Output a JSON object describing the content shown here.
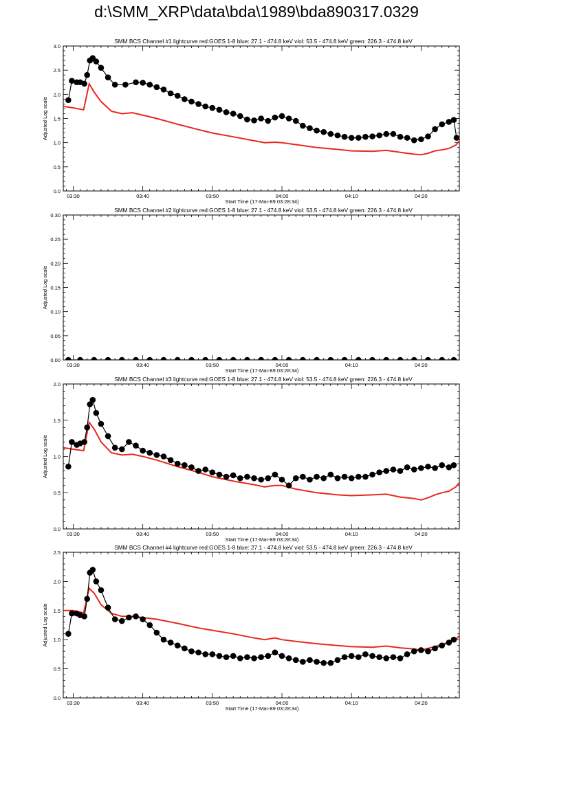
{
  "page": {
    "title": "d:\\SMM_XRP\\data\\bda\\1989\\bda890317.0329"
  },
  "colors": {
    "goes": "#e8281e",
    "channel": "#000000",
    "axis": "#000000"
  },
  "chart_data": [
    {
      "type": "line",
      "title": "SMM BCS Channel #1 lightcurve  red:GOES 1-8  blue: 27.1 - 474.8 keV  viol: 53.5 - 474.8 keV  green: 226.3 - 474.8 keV",
      "xlabel": "Start Time (17-Mar-89 03:28:34)",
      "ylabel": "Adjusted Log scale",
      "xticks": [
        "03:30",
        "03:40",
        "03:50",
        "04:00",
        "04:10",
        "04:20"
      ],
      "xtick_minutes": [
        30,
        40,
        50,
        60,
        70,
        80
      ],
      "xlim_minutes": [
        28.57,
        85.5
      ],
      "ylim": [
        0,
        3.0
      ],
      "yticks": [
        "0.0",
        "0.5",
        "1.0",
        "1.5",
        "2.0",
        "2.5",
        "3.0"
      ],
      "series": [
        {
          "color": "#e8281e",
          "x": [
            28.6,
            30,
            31.5,
            32.3,
            33,
            34,
            35.5,
            37,
            38.5,
            40,
            42,
            45,
            48,
            50,
            53,
            56,
            57.5,
            59,
            60,
            62,
            65,
            68,
            70,
            73,
            75,
            77,
            79,
            80,
            81,
            82,
            83,
            84,
            85,
            85.5
          ],
          "values": [
            1.75,
            1.72,
            1.68,
            2.22,
            2.05,
            1.85,
            1.65,
            1.6,
            1.62,
            1.57,
            1.5,
            1.38,
            1.27,
            1.2,
            1.12,
            1.04,
            1.0,
            1.01,
            1.0,
            0.96,
            0.9,
            0.86,
            0.83,
            0.82,
            0.84,
            0.8,
            0.76,
            0.75,
            0.78,
            0.83,
            0.85,
            0.88,
            0.95,
            1.04
          ]
        },
        {
          "color": "#000000",
          "x": [
            29.3,
            29.8,
            30.5,
            31,
            31.6,
            32,
            32.4,
            32.8,
            33.3,
            34,
            35,
            36,
            37.5,
            39,
            40,
            41,
            42,
            43,
            44,
            45,
            46,
            47,
            48,
            49,
            50,
            51,
            52,
            53,
            54,
            55,
            56,
            57,
            58,
            59,
            60,
            61,
            62,
            63,
            64,
            65,
            66,
            67,
            68,
            69,
            70,
            71,
            72,
            73,
            74,
            75,
            76,
            77,
            78,
            79,
            80,
            81,
            82,
            83,
            84,
            84.7,
            85.1
          ],
          "values": [
            1.88,
            2.28,
            2.25,
            2.25,
            2.22,
            2.4,
            2.7,
            2.75,
            2.68,
            2.55,
            2.35,
            2.2,
            2.2,
            2.25,
            2.24,
            2.2,
            2.15,
            2.1,
            2.02,
            1.97,
            1.9,
            1.85,
            1.8,
            1.75,
            1.72,
            1.68,
            1.63,
            1.6,
            1.55,
            1.48,
            1.46,
            1.5,
            1.45,
            1.52,
            1.55,
            1.5,
            1.45,
            1.35,
            1.3,
            1.25,
            1.22,
            1.18,
            1.15,
            1.12,
            1.1,
            1.1,
            1.12,
            1.13,
            1.15,
            1.18,
            1.18,
            1.12,
            1.1,
            1.05,
            1.07,
            1.13,
            1.28,
            1.38,
            1.43,
            1.47,
            1.1
          ]
        }
      ]
    },
    {
      "type": "line",
      "title": "SMM BCS Channel #2 lightcurve  red:GOES 1-8  blue: 27.1 - 474.8 keV  viol: 53.5 - 474.8 keV  green: 226.3 - 474.8 keV",
      "xlabel": "Start Time (17-Mar-89 03:28:34)",
      "ylabel": "Adjusted Log scale",
      "xticks": [
        "03:30",
        "03:40",
        "03:50",
        "04:00",
        "04:10",
        "04:20"
      ],
      "xtick_minutes": [
        30,
        40,
        50,
        60,
        70,
        80
      ],
      "xlim_minutes": [
        28.57,
        85.5
      ],
      "ylim": [
        0,
        0.3
      ],
      "yticks": [
        "0.00",
        "0.05",
        "0.10",
        "0.15",
        "0.20",
        "0.25",
        "0.30"
      ],
      "series": [
        {
          "color": "#000000",
          "x": [
            29.3,
            31,
            33,
            35,
            37,
            39,
            41,
            43,
            45,
            47,
            49,
            51,
            53,
            55,
            57,
            59,
            61,
            63,
            65,
            67,
            69,
            71,
            73,
            75,
            77,
            79,
            81,
            83,
            84.7
          ],
          "values": [
            0,
            0,
            0,
            0,
            0,
            0,
            0,
            0,
            0,
            0,
            0,
            0,
            0,
            0,
            0,
            0,
            0,
            0,
            0,
            0,
            0,
            0,
            0,
            0,
            0,
            0,
            0,
            0,
            0
          ]
        }
      ]
    },
    {
      "type": "line",
      "title": "SMM BCS Channel #3 lightcurve  red:GOES 1-8  blue: 27.1 - 474.8 keV  viol: 53.5 - 474.8 keV  green: 226.3 - 474.8 keV",
      "xlabel": "Start Time (17-Mar-89 03:28:34)",
      "ylabel": "Adjusted Log scale",
      "xticks": [
        "03:30",
        "03:40",
        "03:50",
        "04:00",
        "04:10",
        "04:20"
      ],
      "xtick_minutes": [
        30,
        40,
        50,
        60,
        70,
        80
      ],
      "xlim_minutes": [
        28.57,
        85.5
      ],
      "ylim": [
        0,
        2.0
      ],
      "yticks": [
        "0.0",
        "0.5",
        "1.0",
        "1.5",
        "2.0"
      ],
      "series": [
        {
          "color": "#e8281e",
          "x": [
            28.6,
            30,
            31.5,
            32.3,
            33,
            34,
            35.5,
            37,
            38.5,
            40,
            42,
            45,
            48,
            50,
            53,
            56,
            57.5,
            59,
            60,
            62,
            65,
            68,
            70,
            73,
            75,
            77,
            79,
            80,
            81,
            82,
            83,
            84,
            85,
            85.5
          ],
          "values": [
            1.12,
            1.1,
            1.08,
            1.47,
            1.38,
            1.2,
            1.05,
            1.02,
            1.03,
            1.0,
            0.95,
            0.86,
            0.78,
            0.72,
            0.66,
            0.61,
            0.58,
            0.6,
            0.6,
            0.55,
            0.5,
            0.47,
            0.46,
            0.47,
            0.48,
            0.44,
            0.42,
            0.4,
            0.43,
            0.47,
            0.5,
            0.52,
            0.58,
            0.64
          ]
        },
        {
          "color": "#000000",
          "x": [
            29.3,
            29.8,
            30.5,
            31,
            31.6,
            32,
            32.4,
            32.8,
            33.3,
            34,
            35,
            36,
            37,
            38,
            39,
            40,
            41,
            42,
            43,
            44,
            45,
            46,
            47,
            48,
            49,
            50,
            51,
            52,
            53,
            54,
            55,
            56,
            57,
            58,
            59,
            60,
            61,
            62,
            63,
            64,
            65,
            66,
            67,
            68,
            69,
            70,
            71,
            72,
            73,
            74,
            75,
            76,
            77,
            78,
            79,
            80,
            81,
            82,
            83,
            84,
            84.7
          ],
          "values": [
            0.86,
            1.2,
            1.16,
            1.18,
            1.2,
            1.4,
            1.72,
            1.78,
            1.6,
            1.45,
            1.28,
            1.12,
            1.1,
            1.2,
            1.15,
            1.08,
            1.05,
            1.02,
            1.0,
            0.95,
            0.9,
            0.88,
            0.85,
            0.8,
            0.82,
            0.78,
            0.75,
            0.72,
            0.74,
            0.7,
            0.72,
            0.7,
            0.68,
            0.7,
            0.75,
            0.68,
            0.6,
            0.7,
            0.72,
            0.68,
            0.72,
            0.7,
            0.75,
            0.7,
            0.72,
            0.7,
            0.72,
            0.72,
            0.75,
            0.78,
            0.8,
            0.82,
            0.8,
            0.85,
            0.82,
            0.84,
            0.86,
            0.84,
            0.88,
            0.85,
            0.88
          ]
        }
      ]
    },
    {
      "type": "line",
      "title": "SMM BCS Channel #4 lightcurve  red:GOES 1-8  blue: 27.1 - 474.8 keV  viol: 53.5 - 474.8 keV  green: 226.3 - 474.8 keV",
      "xlabel": "Start Time (17-Mar-89 03:28:34)",
      "ylabel": "Adjusted Log scale",
      "xticks": [
        "03:30",
        "03:40",
        "03:50",
        "04:00",
        "04:10",
        "04:20"
      ],
      "xtick_minutes": [
        30,
        40,
        50,
        60,
        70,
        80
      ],
      "xlim_minutes": [
        28.57,
        85.5
      ],
      "ylim": [
        0,
        2.5
      ],
      "yticks": [
        "0.0",
        "0.5",
        "1.0",
        "1.5",
        "2.0",
        "2.5"
      ],
      "series": [
        {
          "color": "#e8281e",
          "x": [
            28.6,
            30,
            31.5,
            32.3,
            33,
            34,
            35.5,
            37,
            38.5,
            40,
            42,
            45,
            48,
            50,
            53,
            56,
            57.5,
            59,
            60,
            62,
            65,
            68,
            70,
            73,
            75,
            77,
            79,
            80,
            81,
            82,
            83,
            84,
            85,
            85.5
          ],
          "values": [
            1.5,
            1.5,
            1.46,
            1.88,
            1.8,
            1.6,
            1.45,
            1.4,
            1.4,
            1.38,
            1.35,
            1.28,
            1.2,
            1.16,
            1.1,
            1.03,
            1.0,
            1.03,
            1.0,
            0.97,
            0.93,
            0.9,
            0.88,
            0.87,
            0.89,
            0.86,
            0.84,
            0.82,
            0.85,
            0.88,
            0.92,
            0.95,
            1.0,
            1.07
          ]
        },
        {
          "color": "#000000",
          "x": [
            29.3,
            29.8,
            30.5,
            31,
            31.6,
            32,
            32.4,
            32.8,
            33.3,
            34,
            35,
            36,
            37,
            38,
            39,
            40,
            41,
            42,
            43,
            44,
            45,
            46,
            47,
            48,
            49,
            50,
            51,
            52,
            53,
            54,
            55,
            56,
            57,
            58,
            59,
            60,
            61,
            62,
            63,
            64,
            65,
            66,
            67,
            68,
            69,
            70,
            71,
            72,
            73,
            74,
            75,
            76,
            77,
            78,
            79,
            80,
            81,
            82,
            83,
            84,
            84.7
          ],
          "values": [
            1.1,
            1.45,
            1.45,
            1.42,
            1.4,
            1.7,
            2.15,
            2.2,
            2.0,
            1.85,
            1.55,
            1.35,
            1.32,
            1.38,
            1.4,
            1.35,
            1.25,
            1.12,
            1.0,
            0.95,
            0.9,
            0.85,
            0.8,
            0.78,
            0.75,
            0.75,
            0.72,
            0.7,
            0.72,
            0.68,
            0.7,
            0.68,
            0.7,
            0.72,
            0.78,
            0.72,
            0.68,
            0.65,
            0.62,
            0.65,
            0.62,
            0.6,
            0.6,
            0.65,
            0.7,
            0.72,
            0.7,
            0.75,
            0.72,
            0.7,
            0.68,
            0.7,
            0.68,
            0.75,
            0.8,
            0.82,
            0.8,
            0.85,
            0.9,
            0.95,
            1.0
          ]
        }
      ]
    }
  ]
}
